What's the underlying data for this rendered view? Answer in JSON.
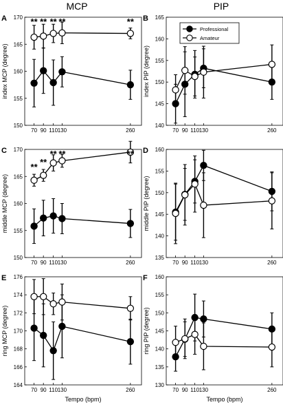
{
  "columns": {
    "left_title": "MCP",
    "right_title": "PIP"
  },
  "colors": {
    "professional": "#000000",
    "amateur": "#ffffff",
    "stroke": "#000000"
  },
  "legend": {
    "professional": "Professional",
    "amateur": "Amateur"
  },
  "chart_data": [
    {
      "panel": "A",
      "type": "line",
      "xlabel": "",
      "ylabel": "index MCP (degree)",
      "x": [
        70,
        90,
        110,
        130,
        260
      ],
      "xticks": [
        "70",
        "90",
        "110",
        "130",
        "260"
      ],
      "ylim": [
        150,
        170
      ],
      "yticks": [
        150,
        155,
        160,
        165,
        170
      ],
      "series": [
        {
          "name": "Professional",
          "values": [
            157.8,
            160.1,
            157.9,
            159.9,
            157.5
          ],
          "errors": [
            4.4,
            4.2,
            4.2,
            2.8,
            2.7
          ]
        },
        {
          "name": "Amateur",
          "values": [
            166.3,
            166.5,
            167.0,
            167.1,
            167.0
          ],
          "errors": [
            2.2,
            2.2,
            1.7,
            2.0,
            1.0
          ]
        }
      ],
      "significance": [
        "**",
        "**",
        "**",
        "**",
        "**"
      ]
    },
    {
      "panel": "B",
      "type": "line",
      "xlabel": "",
      "ylabel": "index PIP (degree)",
      "x": [
        70,
        90,
        110,
        130,
        260
      ],
      "xticks": [
        "70",
        "90",
        "110",
        "130",
        "260"
      ],
      "ylim": [
        140,
        165
      ],
      "yticks": [
        140,
        145,
        150,
        155,
        160,
        165
      ],
      "series": [
        {
          "name": "Professional",
          "values": [
            145.0,
            149.5,
            151.8,
            153.2,
            150.0
          ],
          "errors": [
            4.5,
            7.5,
            5.5,
            4.5,
            4.0
          ]
        },
        {
          "name": "Amateur",
          "values": [
            148.2,
            152.7,
            151.3,
            152.3,
            154.1
          ],
          "errors": [
            3.5,
            5.5,
            4.5,
            6.0,
            4.5
          ]
        }
      ],
      "legend_position": "top-left"
    },
    {
      "panel": "C",
      "type": "line",
      "xlabel": "",
      "ylabel": "middle MCP (degree)",
      "x": [
        70,
        90,
        110,
        130,
        260
      ],
      "xticks": [
        "70",
        "90",
        "110",
        "130",
        "260"
      ],
      "ylim": [
        150,
        170
      ],
      "yticks": [
        150,
        155,
        160,
        165,
        170
      ],
      "series": [
        {
          "name": "Professional",
          "values": [
            155.8,
            157.3,
            157.7,
            157.2,
            156.3
          ],
          "errors": [
            3.2,
            3.3,
            3.2,
            2.8,
            2.6
          ]
        },
        {
          "name": "Amateur",
          "values": [
            164.3,
            165.2,
            167.5,
            167.9,
            169.5
          ],
          "errors": [
            1.1,
            1.1,
            1.5,
            1.2,
            2.0
          ]
        }
      ],
      "significance": [
        "**",
        "**",
        "**",
        "**",
        "**"
      ]
    },
    {
      "panel": "D",
      "type": "line",
      "xlabel": "",
      "ylabel": "middle PIP (degree)",
      "x": [
        70,
        90,
        110,
        130,
        260
      ],
      "xticks": [
        "70",
        "90",
        "110",
        "130",
        "260"
      ],
      "ylim": [
        135,
        160
      ],
      "yticks": [
        135,
        140,
        145,
        150,
        155,
        160
      ],
      "series": [
        {
          "name": "Professional",
          "values": [
            145.5,
            149.6,
            152.6,
            156.3,
            150.3
          ],
          "errors": [
            6.5,
            6.0,
            5.0,
            3.5,
            4.5
          ]
        },
        {
          "name": "Amateur",
          "values": [
            145.2,
            149.5,
            152.0,
            147.1,
            148.1
          ],
          "errors": [
            7.0,
            7.0,
            6.5,
            7.5,
            6.5
          ]
        }
      ]
    },
    {
      "panel": "E",
      "type": "line",
      "xlabel": "Tempo (bpm)",
      "ylabel": "ring MCP (degree)",
      "x": [
        70,
        90,
        110,
        130,
        260
      ],
      "xticks": [
        "70",
        "90",
        "110",
        "130",
        "260"
      ],
      "ylim": [
        164,
        176
      ],
      "yticks": [
        164,
        166,
        168,
        170,
        172,
        174,
        176
      ],
      "series": [
        {
          "name": "Professional",
          "values": [
            170.3,
            169.5,
            167.8,
            170.5,
            168.8
          ],
          "errors": [
            3.6,
            3.5,
            3.2,
            3.5,
            2.5
          ]
        },
        {
          "name": "Amateur",
          "values": [
            173.8,
            173.8,
            173.0,
            173.2,
            172.5
          ],
          "errors": [
            1.9,
            2.0,
            1.2,
            2.0,
            1.3
          ]
        }
      ]
    },
    {
      "panel": "F",
      "type": "line",
      "xlabel": "Tempo (bpm)",
      "ylabel": "ring PIP (degree)",
      "x": [
        70,
        90,
        110,
        130,
        260
      ],
      "xticks": [
        "70",
        "90",
        "110",
        "130",
        "260"
      ],
      "ylim": [
        130,
        160
      ],
      "yticks": [
        130,
        135,
        140,
        145,
        150,
        155,
        160
      ],
      "series": [
        {
          "name": "Professional",
          "values": [
            137.8,
            142.7,
            148.7,
            148.3,
            145.5
          ],
          "errors": [
            4.0,
            4.8,
            6.5,
            5.0,
            4.5
          ]
        },
        {
          "name": "Amateur",
          "values": [
            141.8,
            142.8,
            144.0,
            140.7,
            140.5
          ],
          "errors": [
            4.5,
            5.5,
            5.5,
            6.5,
            5.5
          ]
        }
      ]
    }
  ]
}
